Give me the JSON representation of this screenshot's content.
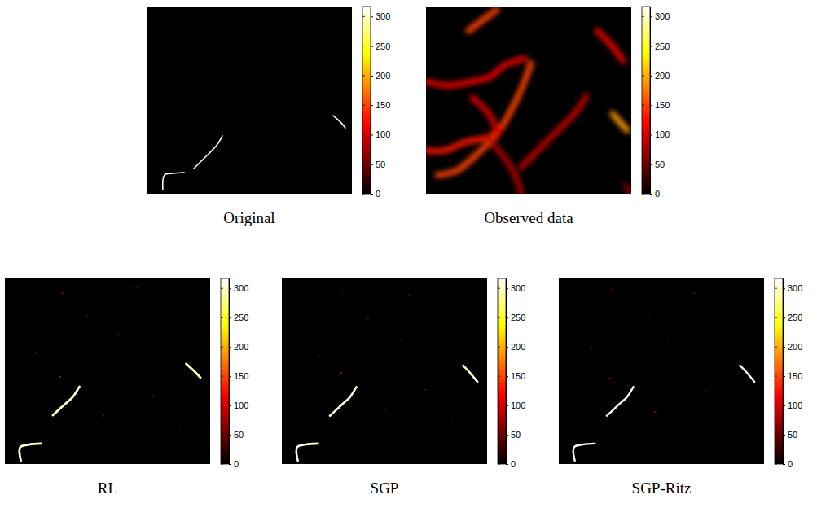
{
  "chart_data": [
    {
      "type": "image",
      "title": "Original",
      "xlim": [
        0,
        100
      ],
      "ylim": [
        0,
        100
      ],
      "tick_labels": false,
      "colorbar": {
        "range": [
          0,
          317
        ],
        "ticks": [
          0,
          50,
          100,
          150,
          200,
          250,
          300
        ]
      },
      "strokes": [
        {
          "x": [
            90.9,
            94.4,
            96.8
          ],
          "y": [
            58.3,
            61.7,
            64.8
          ],
          "value": 317
        },
        {
          "x": [
            23,
            25.8,
            27.8,
            30.2,
            32.5,
            34.9,
            36.9
          ],
          "y": [
            86.5,
            83.5,
            81.3,
            78.7,
            76.1,
            73,
            69.1
          ],
          "value": 317
        },
        {
          "x": [
            7.9,
            8.7,
            12.7,
            18.3
          ],
          "y": [
            97.8,
            90,
            89.1,
            88.7
          ],
          "value": 317
        }
      ]
    },
    {
      "type": "image",
      "title": "Observed data",
      "xlim": [
        0,
        100
      ],
      "ylim": [
        0,
        100
      ],
      "tick_labels": false,
      "colorbar": {
        "range": [
          0,
          317
        ],
        "ticks": [
          0,
          50,
          100,
          150,
          200,
          250,
          300
        ]
      },
      "strokes": [
        {
          "x": [
            20.6,
            34.5
          ],
          "y": [
            13,
            1.7
          ],
          "value": 150
        },
        {
          "x": [
            83.3,
            90.1,
            96
          ],
          "y": [
            13,
            20.4,
            29.1
          ],
          "value": 110
        },
        {
          "x": [
            90.9,
            98
          ],
          "y": [
            57.4,
            66.1
          ],
          "value": 190
        },
        {
          "x": [
            5.6,
            14.7,
            24.6,
            34.5,
            40.5,
            46.4,
            51.2
          ],
          "y": [
            90,
            87.8,
            79.1,
            68.3,
            57.4,
            44.3,
            30.4
          ],
          "value": 150
        },
        {
          "x": [
            0,
            10.7,
            22.6,
            30.6,
            38.5,
            48.4
          ],
          "y": [
            40,
            42.2,
            40,
            37.8,
            31.3,
            27.8
          ],
          "value": 110
        },
        {
          "x": [
            0,
            8.7,
            18.7,
            30.6,
            36.5
          ],
          "y": [
            77,
            77,
            72.6,
            69.6,
            65.2
          ],
          "value": 130
        },
        {
          "x": [
            30.6,
            38.5,
            43.3,
            46.4
          ],
          "y": [
            70.4,
            81.3,
            90,
            100
          ],
          "value": 80
        },
        {
          "x": [
            46.4,
            54.4,
            64.3,
            72.2,
            78.2
          ],
          "y": [
            85.7,
            77,
            66.1,
            57.4,
            47.8
          ],
          "value": 90
        },
        {
          "x": [
            22.6,
            30.6,
            35.3
          ],
          "y": [
            48.7,
            57.4,
            68.3
          ],
          "value": 100
        },
        {
          "x": [
            97.2,
            100
          ],
          "y": [
            95.7,
            100
          ],
          "value": 60
        }
      ]
    },
    {
      "type": "image",
      "title": "RL",
      "xlim": [
        0,
        100
      ],
      "ylim": [
        0,
        100
      ],
      "tick_labels": false,
      "colorbar": {
        "range": [
          0,
          317
        ],
        "ticks": [
          0,
          50,
          100,
          150,
          200,
          250,
          300
        ]
      },
      "strokes": [
        {
          "x": [
            88.3,
            91.8,
            95.3
          ],
          "y": [
            46,
            49.5,
            53.5
          ],
          "value": 290
        },
        {
          "x": [
            23.4,
            27,
            30,
            33,
            36.3
          ],
          "y": [
            73.7,
            70,
            67,
            64,
            58.3
          ],
          "value": 300
        },
        {
          "x": [
            7.8,
            7.4,
            11.7,
            17.6
          ],
          "y": [
            98.2,
            91,
            89.5,
            89
          ],
          "value": 300
        }
      ],
      "points": {
        "x": [
          28,
          64,
          27,
          72,
          40,
          55,
          85,
          15,
          48
        ],
        "y": [
          8,
          5,
          53,
          63,
          20,
          30,
          80,
          40,
          74
        ],
        "values": [
          60,
          50,
          90,
          60,
          40,
          45,
          40,
          50,
          70
        ]
      }
    },
    {
      "type": "image",
      "title": "SGP",
      "xlim": [
        0,
        100
      ],
      "ylim": [
        0,
        100
      ],
      "tick_labels": false,
      "colorbar": {
        "range": [
          0,
          317
        ],
        "ticks": [
          0,
          50,
          100,
          150,
          200,
          250,
          300
        ]
      },
      "strokes": [
        {
          "x": [
            88.3,
            91.8,
            95.3
          ],
          "y": [
            46.9,
            51,
            55.7
          ],
          "value": 305
        },
        {
          "x": [
            23.4,
            27,
            30,
            33,
            36.3
          ],
          "y": [
            74,
            70.3,
            67.2,
            64.2,
            58.5
          ],
          "value": 305
        },
        {
          "x": [
            7.8,
            7.4,
            11.7,
            17.6
          ],
          "y": [
            98.2,
            91,
            89.5,
            89
          ],
          "value": 305
        }
      ],
      "points": {
        "x": [
          30,
          62,
          29,
          70,
          42,
          58,
          83,
          18,
          50
        ],
        "y": [
          7,
          9,
          51,
          60,
          22,
          33,
          78,
          42,
          70
        ],
        "values": [
          55,
          45,
          80,
          55,
          40,
          40,
          35,
          45,
          60
        ]
      }
    },
    {
      "type": "image",
      "title": "SGP-Ritz",
      "xlim": [
        0,
        100
      ],
      "ylim": [
        0,
        100
      ],
      "tick_labels": false,
      "colorbar": {
        "range": [
          0,
          317
        ],
        "ticks": [
          0,
          50,
          100,
          150,
          200,
          250,
          300
        ]
      },
      "strokes": [
        {
          "x": [
            88.3,
            91.8,
            95.3
          ],
          "y": [
            46.9,
            51,
            55.7
          ],
          "value": 310
        },
        {
          "x": [
            23.4,
            27,
            30,
            33,
            36.3
          ],
          "y": [
            74,
            70.3,
            67.2,
            64.2,
            58.5
          ],
          "value": 310
        },
        {
          "x": [
            7.8,
            7.4,
            11.7,
            17.6
          ],
          "y": [
            98.2,
            91,
            89.5,
            89
          ],
          "value": 310
        }
      ],
      "points": {
        "x": [
          26,
          66,
          25,
          71,
          44,
          53,
          86,
          16,
          47
        ],
        "y": [
          6,
          8,
          54,
          61,
          21,
          31,
          82,
          38,
          72
        ],
        "values": [
          60,
          50,
          85,
          55,
          45,
          40,
          40,
          50,
          65
        ]
      }
    }
  ]
}
